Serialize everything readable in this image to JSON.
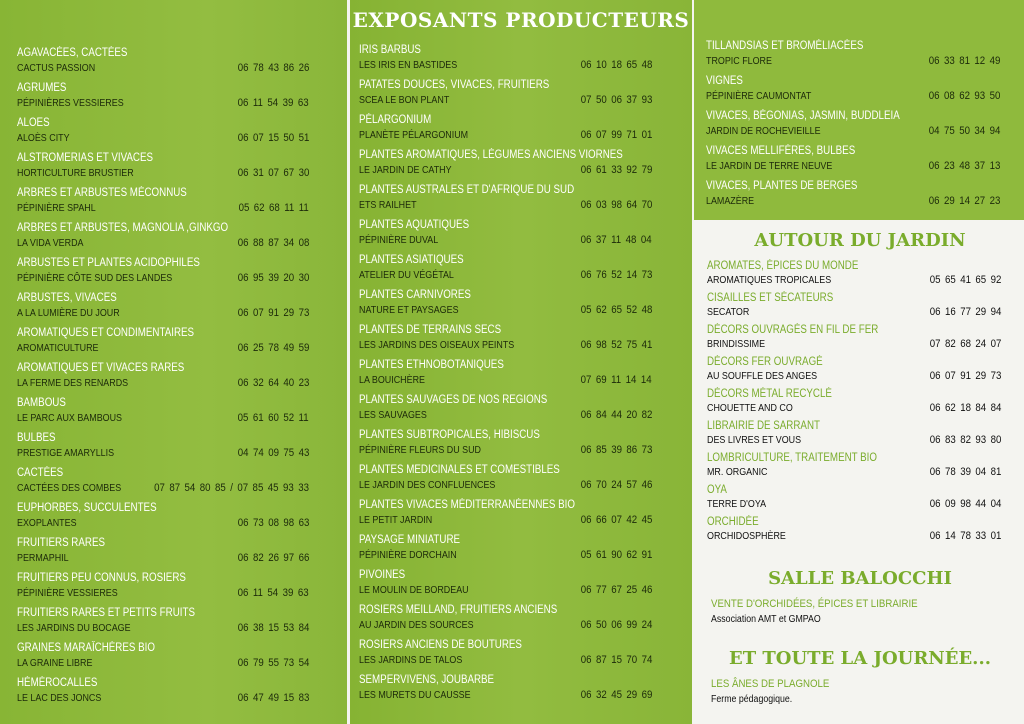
{
  "header": {
    "title": "EXPOSANTS PRODUCTEURS"
  },
  "colors": {
    "green_panel": "#8fb93c",
    "green_text": "#7aac2c"
  },
  "column1": [
    {
      "category": "AGAVACÉES, CACTÉES",
      "name": "CACTUS PASSION",
      "phone": "06 78 43 86 26"
    },
    {
      "category": "AGRUMES",
      "name": "PÉPINIÈRES VESSIERES",
      "phone": "06 11 54 39 63"
    },
    {
      "category": "ALOES",
      "name": "ALOÈS CITY",
      "phone": "06 07 15 50 51"
    },
    {
      "category": "ALSTROMERIAS ET VIVACES",
      "name": "HORTICULTURE BRUSTIER",
      "phone": "06 31 07 67 30"
    },
    {
      "category": "ARBRES ET ARBUSTES MÉCONNUS",
      "name": "PÉPINIÈRE SPAHL",
      "phone": "05 62 68 11 11"
    },
    {
      "category": "ARBRES ET ARBUSTES, MAGNOLIA ,GINKGO",
      "name": "LA VIDA VERDA",
      "phone": "06 88 87 34 08"
    },
    {
      "category": "ARBUSTES ET PLANTES ACIDOPHILES",
      "name": "PÉPINIÈRE CÔTE SUD DES LANDES",
      "phone": "06 95 39 20 30"
    },
    {
      "category": "ARBUSTES, VIVACES",
      "name": "A LA LUMIÈRE DU JOUR",
      "phone": "06 07 91 29 73"
    },
    {
      "category": "AROMATIQUES ET CONDIMENTAIRES",
      "name": "AROMATICULTURE",
      "phone": "06 25 78 49 59"
    },
    {
      "category": "AROMATIQUES ET VIVACES RARES",
      "name": "LA FERME DES RENARDS",
      "phone": "06 32 64 40 23"
    },
    {
      "category": "BAMBOUS",
      "name": "LE PARC AUX BAMBOUS",
      "phone": "05 61 60 52 11"
    },
    {
      "category": "BULBES",
      "name": "PRESTIGE AMARYLLIS",
      "phone": "04 74 09 75 43"
    },
    {
      "category": "CACTÉES",
      "name": "CACTÉES DES COMBES",
      "phone": "07 87 54 80 85 / 07 85 45 93 33"
    },
    {
      "category": "EUPHORBES, SUCCULENTES",
      "name": "EXOPLANTES",
      "phone": "06 73 08 98 63"
    },
    {
      "category": "FRUITIERS RARES",
      "name": "PERMAPHIL",
      "phone": "06 82 26 97 66"
    },
    {
      "category": "FRUITIERS PEU CONNUS, ROSIERS",
      "name": "PÉPINIÈRE VESSIERES",
      "phone": "06 11 54 39 63"
    },
    {
      "category": "FRUITIERS RARES ET PETITS FRUITS",
      "name": "LES JARDINS DU BOCAGE",
      "phone": "06 38 15 53 84"
    },
    {
      "category": "GRAINES MARAÎCHÈRES BIO",
      "name": "LA GRAINE LIBRE",
      "phone": "06 79 55 73 54"
    },
    {
      "category": "HÉMÉROCALLES",
      "name": "LE LAC DES JONCS",
      "phone": "06 47 49 15 83"
    }
  ],
  "column2": [
    {
      "category": "IRIS BARBUS",
      "name": "LES IRIS EN BASTIDES",
      "phone": "06 10 18 65 48"
    },
    {
      "category": "PATATES DOUCES, VIVACES, FRUITIERS",
      "name": "SCEA LE BON PLANT",
      "phone": "07 50 06 37 93"
    },
    {
      "category": "PÉLARGONIUM",
      "name": "PLANÈTE PÉLARGONIUM",
      "phone": "06 07 99 71 01"
    },
    {
      "category": "PLANTES AROMATIQUES, LÉGUMES ANCIENS VIORNES",
      "name": "LE JARDIN DE CATHY",
      "phone": "06 61 33 92 79"
    },
    {
      "category": "PLANTES AUSTRALES ET D'AFRIQUE DU SUD",
      "name": "ETS RAILHET",
      "phone": "06 03 98 64 70"
    },
    {
      "category": "PLANTES AQUATIQUES",
      "name": "PÉPINIÈRE DUVAL",
      "phone": "06 37 11 48 04"
    },
    {
      "category": "PLANTES ASIATIQUES",
      "name": "ATELIER DU VÉGÉTAL",
      "phone": "06 76 52 14 73"
    },
    {
      "category": "PLANTES CARNIVORES",
      "name": "NATURE ET PAYSAGES",
      "phone": "05 62 65 52 48"
    },
    {
      "category": "PLANTES DE TERRAINS SECS",
      "name": "LES JARDINS DES OISEAUX PEINTS",
      "phone": "06 98 52 75 41"
    },
    {
      "category": "PLANTES ETHNOBOTANIQUES",
      "name": "LA BOUICHÈRE",
      "phone": "07 69 11 14 14"
    },
    {
      "category": "PLANTES SAUVAGES DE NOS REGIONS",
      "name": "LES SAUVAGES",
      "phone": "06 84 44 20 82"
    },
    {
      "category": "PLANTES SUBTROPICALES, HIBISCUS",
      "name": "PÉPINIÈRE FLEURS DU SUD",
      "phone": "06 85 39 86 73"
    },
    {
      "category": "PLANTES MEDICINALES ET COMESTIBLES",
      "name": "LE JARDIN DES CONFLUENCES",
      "phone": "06 70 24 57 46"
    },
    {
      "category": "PLANTES VIVACES MÉDITERRANÉENNES BIO",
      "name": "LE PETIT JARDIN",
      "phone": "06 66 07 42 45"
    },
    {
      "category": "PAYSAGE MINIATURE",
      "name": "PÉPINIÈRE DORCHAIN",
      "phone": "05 61 90 62 91"
    },
    {
      "category": "PIVOINES",
      "name": "LE MOULIN DE BORDEAU",
      "phone": "06 77 67 25 46"
    },
    {
      "category": "ROSIERS MEILLAND, FRUITIERS ANCIENS",
      "name": "AU JARDIN DES SOURCES",
      "phone": "06 50 06 99 24"
    },
    {
      "category": "ROSIERS ANCIENS DE BOUTURES",
      "name": "LES JARDINS DE TALOS",
      "phone": "06 87 15 70 74"
    },
    {
      "category": "SEMPERVIVENS, JOUBARBE",
      "name": "LES MURETS DU CAUSSE",
      "phone": "06 32 45 29 69"
    }
  ],
  "column3": [
    {
      "category": "TILLANDSIAS ET BROMÉLIACÉES",
      "name": "TROPIC FLORE",
      "phone": "06 33 81 12 49"
    },
    {
      "category": "VIGNES",
      "name": "PÉPINIÈRE CAUMONTAT",
      "phone": "06 08 62 93 50"
    },
    {
      "category": "VIVACES, BÉGONIAS, JASMIN, BUDDLEIA",
      "name": "JARDIN DE ROCHEVIEILLE",
      "phone": "04 75 50 34 94"
    },
    {
      "category": "VIVACES MELLIFÈRES, BULBES",
      "name": "LE JARDIN DE TERRE NEUVE",
      "phone": "06 23 48 37 13"
    },
    {
      "category": "VIVACES, PLANTES DE BERGES",
      "name": "LAMAZÈRE",
      "phone": "06 29 14 27 23"
    }
  ],
  "autour": {
    "title": "AUTOUR DU JARDIN",
    "items": [
      {
        "category": "AROMATES, ÉPICES DU MONDE",
        "name": "AROMATIQUES TROPICALES",
        "phone": "05 65 41 65 92"
      },
      {
        "category": "CISAILLES ET SÉCATEURS",
        "name": "SECATOR",
        "phone": "06 16 77 29 94"
      },
      {
        "category": "DÉCORS OUVRAGÉS EN FIL DE FER",
        "name": "BRINDISSIME",
        "phone": "07 82 68 24 07"
      },
      {
        "category": "DÉCORS FER OUVRAGÉ",
        "name": "AU SOUFFLE DES ANGES",
        "phone": "06 07 91 29 73"
      },
      {
        "category": "DÉCORS MÉTAL RECYCLÉ",
        "name": "CHOUETTE AND CO",
        "phone": "06 62 18 84 84"
      },
      {
        "category": "LIBRAIRIE DE SARRANT",
        "name": "DES LIVRES ET VOUS",
        "phone": "06 83 82 93 80"
      },
      {
        "category": "LOMBRICULTURE, TRAITEMENT BIO",
        "name": "MR. ORGANIC",
        "phone": "06 78 39 04 81"
      },
      {
        "category": "OYA",
        "name": "TERRE D'OYA",
        "phone": "06 09 98 44 04"
      },
      {
        "category": "ORCHIDÉE",
        "name": "ORCHIDOSPHÈRE",
        "phone": "06 14 78 33 01"
      }
    ]
  },
  "salle": {
    "title": "SALLE BALOCCHI",
    "line1": "VENTE D'ORCHIDÉES, ÉPICES ET LIBRAIRIE",
    "line2": "Association AMT et GMPAO"
  },
  "journee": {
    "title": "ET TOUTE LA JOURNÉE...",
    "line1": "LES ÂNES DE PLAGNOLE",
    "line2": "Ferme pédagogique."
  }
}
